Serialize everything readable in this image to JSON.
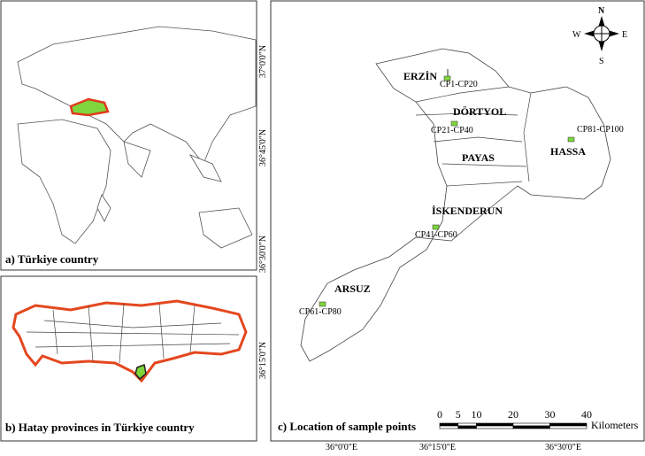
{
  "panels": {
    "a": {
      "caption": "a) Türkiye country"
    },
    "b": {
      "caption": "b) Hatay provinces in Türkiye country"
    },
    "c": {
      "caption": "c) Location of sample points",
      "latitude_labels": [
        "37°0'0\"N",
        "36°45'0\"N",
        "36°30'0\"N",
        "36°15'0\"N"
      ],
      "longitude_labels": [
        "36°0'0\"E",
        "36°15'0\"E",
        "36°30'0\"E"
      ],
      "districts": [
        "ERZİN",
        "DÖRTYOL",
        "PAYAS",
        "HASSA",
        "İSKENDERUN",
        "ARSUZ"
      ],
      "sample_points": [
        "CP1-CP20",
        "CP21-CP40",
        "CP41-CP60",
        "CP61-CP80",
        "CP81-CP100"
      ],
      "compass": {
        "n": "N",
        "s": "S",
        "w": "W",
        "e": "E"
      },
      "scale_bar": {
        "ticks": [
          0,
          5,
          10,
          20,
          30,
          40
        ],
        "unit": "Kilometers"
      }
    }
  }
}
